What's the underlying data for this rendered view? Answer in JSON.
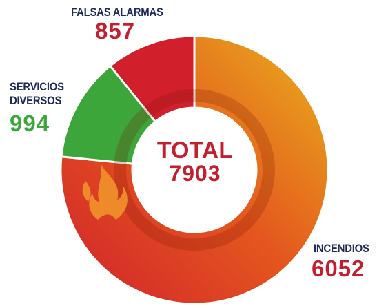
{
  "chart_data": {
    "type": "donut",
    "categories": [
      "INCENDIOS",
      "SERVICIOS DIVERSOS",
      "FALSAS ALARMAS"
    ],
    "values": [
      6052,
      994,
      857
    ],
    "colors": [
      "#e4571e",
      "#3ca63a",
      "#d1202c"
    ],
    "value_colors": [
      "#c41f2e",
      "#3ca63a",
      "#c41f2e"
    ],
    "total_label": "TOTAL",
    "total": 7903
  }
}
